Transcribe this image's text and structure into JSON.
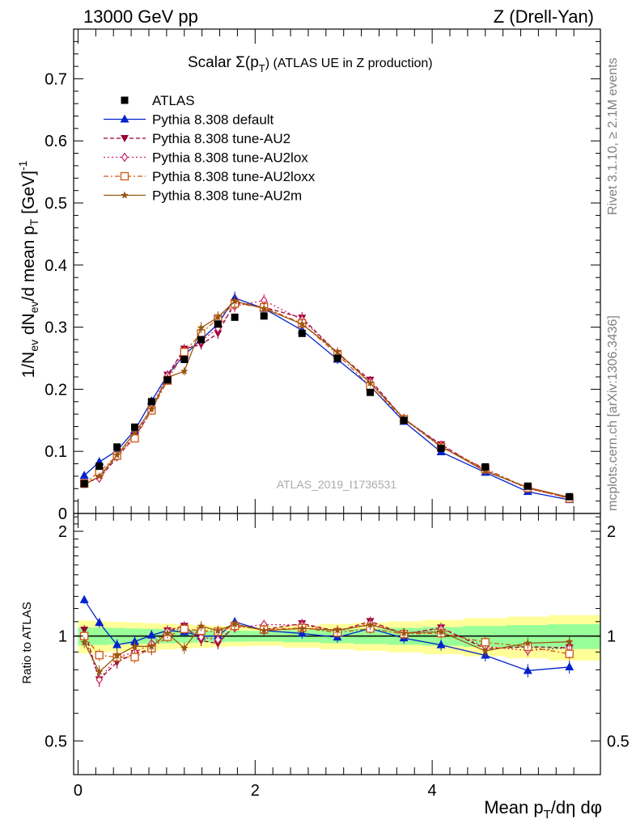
{
  "header": {
    "left": "13000 GeV pp",
    "right": "Z (Drell-Yan)"
  },
  "side": {
    "rivet": "Rivet 3.1.10, ≥ 2.1M events",
    "mcplots": "mcplots.cern.ch [arXiv:1306.3436]"
  },
  "watermark": "ATLAS_2019_I1736531",
  "chart_data": {
    "type": "line",
    "title": "Scalar Σ(p_T) (ATLAS UE in Z production)",
    "title_main": "Scalar Σ(p",
    "title_sub": "T",
    "title_tail": ") (ATLAS UE in Z production)",
    "ylabel": "1/N_ev dN_ev/d mean p_T [GeV]^-1",
    "ylabel_parts": {
      "a": "1/N",
      "a_sub": "ev",
      "b": " dN",
      "b_sub": "ev",
      "c": "/d mean p",
      "c_sub": "T",
      "d": " [GeV]",
      "d_sup": "-1"
    },
    "xlabel": "Mean p_T/dη dφ",
    "xlabel_parts": {
      "a": "Mean p",
      "a_sub": "T",
      "b": "/dη dφ"
    },
    "ratio_ylabel": "Ratio to ATLAS",
    "xlim": [
      -0.05,
      5.9
    ],
    "ylim": [
      0,
      0.78
    ],
    "ratio_ylim": [
      0.4,
      2.25
    ],
    "x_ticks": [
      0,
      2,
      4
    ],
    "y_ticks": [
      0,
      0.1,
      0.2,
      0.3,
      0.4,
      0.5,
      0.6,
      0.7
    ],
    "ratio_ticks": [
      0.5,
      1,
      2
    ],
    "x": [
      0.07,
      0.24,
      0.44,
      0.64,
      0.83,
      1.01,
      1.2,
      1.39,
      1.58,
      1.77,
      2.1,
      2.53,
      2.93,
      3.3,
      3.68,
      4.1,
      4.6,
      5.08,
      5.55
    ],
    "series": [
      {
        "name": "ATLAS",
        "color": "#000000",
        "marker": "filled-square",
        "dash": "",
        "values": [
          0.048,
          0.076,
          0.107,
          0.139,
          0.18,
          0.215,
          0.248,
          0.28,
          0.305,
          0.316,
          0.318,
          0.29,
          0.25,
          0.195,
          0.15,
          0.105,
          0.075,
          0.044,
          0.027
        ]
      },
      {
        "name": "Pythia 8.308 default",
        "color": "#0022cc",
        "marker": "filled-triangle-up",
        "dash": "",
        "values": [
          0.061,
          0.083,
          0.101,
          0.134,
          0.181,
          0.223,
          0.255,
          0.28,
          0.305,
          0.347,
          0.33,
          0.295,
          0.248,
          0.205,
          0.148,
          0.099,
          0.066,
          0.035,
          0.022
        ]
      },
      {
        "name": "Pythia 8.308 tune-AU2",
        "color": "#990033",
        "marker": "filled-triangle-down",
        "dash": "5,3",
        "values": [
          0.05,
          0.057,
          0.09,
          0.124,
          0.165,
          0.223,
          0.265,
          0.272,
          0.29,
          0.34,
          0.332,
          0.315,
          0.258,
          0.215,
          0.152,
          0.111,
          0.069,
          0.041,
          0.025
        ]
      },
      {
        "name": "Pythia 8.308 tune-AU2lox",
        "color": "#cc2266",
        "marker": "open-diamond",
        "dash": "2,3",
        "values": [
          0.048,
          0.057,
          0.093,
          0.125,
          0.171,
          0.222,
          0.262,
          0.278,
          0.298,
          0.334,
          0.343,
          0.312,
          0.258,
          0.212,
          0.153,
          0.11,
          0.07,
          0.04,
          0.025
        ]
      },
      {
        "name": "Pythia 8.308 tune-AU2loxx",
        "color": "#cc5511",
        "marker": "open-square",
        "dash": "6,3,2,3",
        "values": [
          0.048,
          0.067,
          0.093,
          0.121,
          0.166,
          0.214,
          0.26,
          0.29,
          0.314,
          0.338,
          0.332,
          0.306,
          0.256,
          0.205,
          0.152,
          0.107,
          0.072,
          0.041,
          0.024
        ]
      },
      {
        "name": "Pythia 8.308 tune-AU2m",
        "color": "#995511",
        "marker": "filled-star",
        "dash": "",
        "values": [
          0.046,
          0.06,
          0.094,
          0.13,
          0.168,
          0.219,
          0.229,
          0.299,
          0.316,
          0.342,
          0.33,
          0.305,
          0.26,
          0.21,
          0.153,
          0.108,
          0.068,
          0.042,
          0.026
        ]
      }
    ]
  }
}
